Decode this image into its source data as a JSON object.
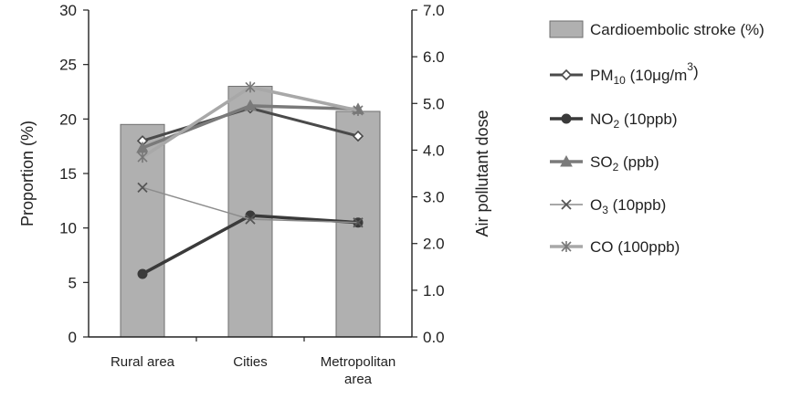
{
  "chart_data": {
    "type": "bar",
    "categories": [
      "Rural area",
      "Cities",
      "Metropolitan area"
    ],
    "category_lines": [
      [
        "Rural area"
      ],
      [
        "Cities"
      ],
      [
        "Metropolitan",
        "area"
      ]
    ],
    "y_left": {
      "label": "Proportion (%)",
      "ylim": [
        0,
        30
      ],
      "ticks": [
        "0",
        "5",
        "10",
        "15",
        "20",
        "25",
        "30"
      ]
    },
    "y_right": {
      "label": "Air pollutant dose",
      "ylim": [
        0,
        7
      ],
      "ticks": [
        "0.0",
        "1.0",
        "2.0",
        "3.0",
        "4.0",
        "5.0",
        "6.0",
        "7.0"
      ]
    },
    "grid": false,
    "legend_position": "right",
    "bar_series": {
      "name": "Cardioembolic stroke (%)",
      "axis": "left",
      "values": [
        19.5,
        23.0,
        20.7
      ],
      "color": "#b0b0b0",
      "edge": "#6e6e6e"
    },
    "line_series": [
      {
        "name": "PM10 (10μg/m3)",
        "name_parts": [
          "PM",
          "10",
          " (10μg/m",
          "3",
          ")"
        ],
        "axis": "right",
        "values": [
          4.2,
          4.9,
          4.3
        ],
        "color": "#4a4a4a",
        "marker": "diamond",
        "width": 3
      },
      {
        "name": "NO2 (10ppb)",
        "name_parts": [
          "NO",
          "2",
          " (10ppb)"
        ],
        "axis": "right",
        "values": [
          1.35,
          2.6,
          2.45
        ],
        "color": "#3a3a3a",
        "marker": "circle",
        "width": 3.5
      },
      {
        "name": "SO2 (ppb)",
        "name_parts": [
          "SO",
          "2",
          " (ppb)"
        ],
        "axis": "right",
        "values": [
          4.05,
          4.95,
          4.88
        ],
        "color": "#7a7a7a",
        "marker": "triangle",
        "width": 3.5
      },
      {
        "name": "O3 (10ppb)",
        "name_parts": [
          "O",
          "3",
          " (10ppb)"
        ],
        "axis": "right",
        "values": [
          3.2,
          2.52,
          2.45
        ],
        "color": "#8c8c8c",
        "marker": "x",
        "width": 1.5
      },
      {
        "name": "CO (100ppb)",
        "name_parts": [
          "CO (100ppb)"
        ],
        "axis": "right",
        "values": [
          3.85,
          5.35,
          4.85
        ],
        "color": "#a8a8a8",
        "marker": "star",
        "width": 3.5
      }
    ]
  }
}
